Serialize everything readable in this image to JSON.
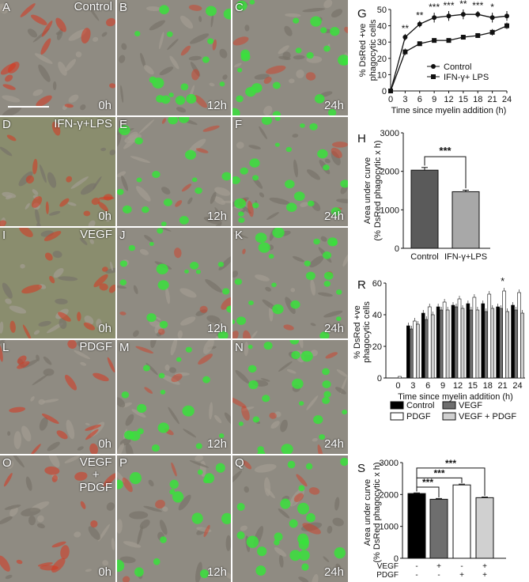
{
  "panels": {
    "A": {
      "letter": "A",
      "condition": "Control",
      "time": "0h"
    },
    "B": {
      "letter": "B",
      "time": "12h"
    },
    "C": {
      "letter": "C",
      "time": "24h"
    },
    "D": {
      "letter": "D",
      "condition": "IFN-γ+LPS",
      "time": "0h"
    },
    "E": {
      "letter": "E",
      "time": "12h"
    },
    "F": {
      "letter": "F",
      "time": "24h"
    },
    "I": {
      "letter": "I",
      "condition": "VEGF",
      "time": "0h"
    },
    "J": {
      "letter": "J",
      "time": "12h"
    },
    "K": {
      "letter": "K",
      "time": "24h"
    },
    "L": {
      "letter": "L",
      "condition": "PDGF",
      "time": "0h"
    },
    "M": {
      "letter": "M",
      "time": "12h"
    },
    "N": {
      "letter": "N",
      "time": "24h"
    },
    "O": {
      "letter": "O",
      "condition_line1": "VEGF",
      "condition_line2": "+",
      "condition_line3": "PDGF",
      "time": "0h"
    },
    "P": {
      "letter": "P",
      "time": "12h"
    },
    "Q": {
      "letter": "Q",
      "time": "24h"
    }
  },
  "colors": {
    "green": "#39e03c",
    "red": "#d9371f",
    "background": "#8e8a80"
  },
  "chart_data": [
    {
      "panel": "G",
      "type": "line",
      "ylabel": "% DsRed +ve phagocytic cells",
      "xlabel": "Time since myelin addition (h)",
      "x": [
        0,
        3,
        6,
        9,
        12,
        15,
        18,
        21,
        24
      ],
      "xlim": [
        0,
        24
      ],
      "ylim": [
        0,
        50
      ],
      "yticks": [
        0,
        10,
        20,
        30,
        40,
        50
      ],
      "series": [
        {
          "name": "Control",
          "marker": "circle",
          "values": [
            0,
            33,
            41,
            45,
            46,
            47,
            47,
            45,
            46
          ],
          "errors": [
            0,
            2,
            2,
            3,
            3,
            3,
            2,
            3,
            3
          ]
        },
        {
          "name": "IFN-γ+ LPS",
          "marker": "square",
          "values": [
            0,
            24,
            29,
            31,
            31,
            33,
            34,
            36,
            40
          ],
          "errors": [
            0,
            2,
            1,
            1,
            1,
            1,
            1,
            2,
            2
          ]
        }
      ],
      "significance": [
        "",
        "**",
        "**",
        "***",
        "***",
        "**",
        "***",
        "*",
        ""
      ]
    },
    {
      "panel": "H",
      "type": "bar",
      "ylabel": "Area under curve (% DsRed phagocytic x h)",
      "categories": [
        "Control",
        "IFN-γ+LPS"
      ],
      "values": [
        2030,
        1470
      ],
      "errors": [
        70,
        40
      ],
      "ylim": [
        0,
        3000
      ],
      "yticks": [
        0,
        1000,
        2000,
        3000
      ],
      "bar_colors": [
        "#5a5a5a",
        "#a8a8a8"
      ],
      "significance": "***"
    },
    {
      "panel": "R",
      "type": "bar",
      "ylabel": "% DsRed +ve phagocytic cells",
      "xlabel": "Time since myelin addition (h)",
      "categories": [
        "0",
        "3",
        "6",
        "9",
        "12",
        "15",
        "18",
        "21",
        "24"
      ],
      "ylim": [
        0,
        60
      ],
      "yticks": [
        0,
        20,
        40,
        60
      ],
      "series": [
        {
          "name": "Control",
          "color": "#000000",
          "values": [
            0,
            33,
            41,
            45,
            46,
            47,
            47,
            45,
            46
          ]
        },
        {
          "name": "VEGF",
          "color": "#6e6e6e",
          "values": [
            0,
            31,
            37,
            43,
            45,
            43,
            42,
            44,
            43
          ]
        },
        {
          "name": "PDGF",
          "color": "#ffffff",
          "values": [
            1,
            36,
            45,
            48,
            50,
            51,
            53,
            55,
            54
          ]
        },
        {
          "name": "VEGF + PDGF",
          "color": "#d0d0d0",
          "values": [
            0,
            34,
            40,
            43,
            44,
            43,
            44,
            42,
            41
          ]
        }
      ],
      "significance_label": "*",
      "significance_at": "21"
    },
    {
      "panel": "S",
      "type": "bar",
      "ylabel": "Area under curve (% DsRed phagocytic x h)",
      "categories": [
        "Control",
        "VEGF",
        "PDGF",
        "VEGF + PDGF"
      ],
      "values": [
        2030,
        1850,
        2300,
        1900
      ],
      "errors": [
        20,
        25,
        25,
        20
      ],
      "bar_colors": [
        "#000000",
        "#6e6e6e",
        "#ffffff",
        "#d0d0d0"
      ],
      "ylim": [
        0,
        3000
      ],
      "yticks": [
        0,
        1000,
        2000,
        3000
      ],
      "row_labels": [
        "VEGF",
        "PDGF"
      ],
      "row_signs": [
        [
          "-",
          "+",
          "-",
          "+"
        ],
        [
          "-",
          "-",
          "+",
          "+"
        ]
      ],
      "significance": [
        "***",
        "***",
        "***"
      ]
    }
  ],
  "panel_letters": {
    "G": "G",
    "H": "H",
    "R": "R",
    "S": "S"
  }
}
